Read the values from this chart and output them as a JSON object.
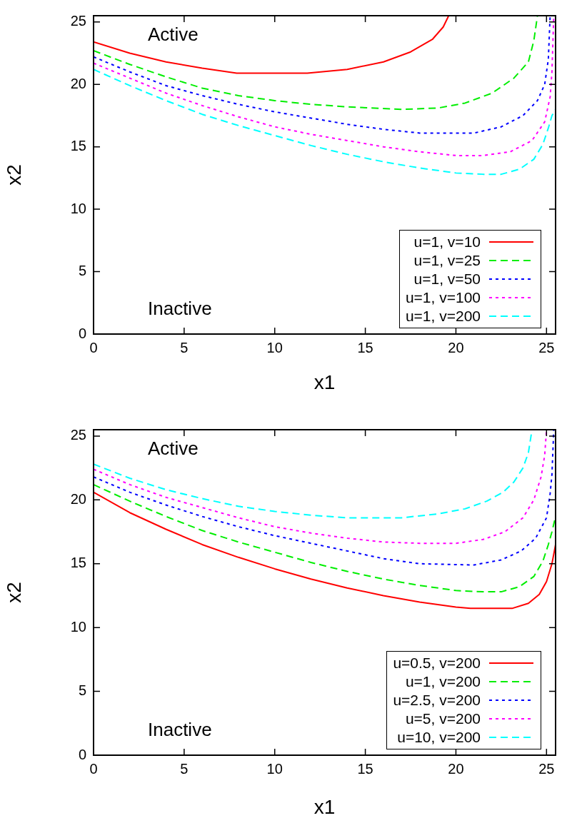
{
  "chart_data": [
    {
      "type": "line",
      "xlabel": "x1",
      "ylabel": "x2",
      "xlim": [
        0,
        25.5
      ],
      "ylim": [
        0,
        25.5
      ],
      "xticks": [
        0,
        5,
        10,
        15,
        20,
        25
      ],
      "yticks": [
        0,
        5,
        10,
        15,
        20,
        25
      ],
      "grid": false,
      "legend": "bottom right",
      "marker": "none",
      "annotations": [
        "Active",
        "Inactive"
      ],
      "series": [
        {
          "name": "u=1, v=10",
          "color": "#ff0000",
          "line_style": "solid",
          "x": [
            0,
            2,
            4,
            6,
            7.9,
            11.8,
            14,
            16,
            17.5,
            18.7,
            19.3,
            19.6
          ],
          "values": [
            23.4,
            22.5,
            21.8,
            21.3,
            20.9,
            20.9,
            21.2,
            21.8,
            22.6,
            23.6,
            24.6,
            25.5
          ]
        },
        {
          "name": "u=1, v=25",
          "color": "#00ee00",
          "line_style": "dashed",
          "x": [
            0,
            2,
            4,
            6,
            8,
            10,
            12,
            14,
            17,
            19,
            20.5,
            22,
            23.2,
            24,
            24.3,
            24.5
          ],
          "values": [
            22.7,
            21.6,
            20.6,
            19.7,
            19.1,
            18.7,
            18.4,
            18.2,
            18.0,
            18.1,
            18.5,
            19.3,
            20.5,
            21.8,
            23.5,
            25.5
          ]
        },
        {
          "name": "u=1, v=50",
          "color": "#0000ff",
          "line_style": "dotted",
          "x": [
            0,
            2,
            4,
            6,
            8,
            10,
            12,
            14,
            16,
            18,
            21,
            22.5,
            23.7,
            24.5,
            24.9,
            25.1,
            25.2
          ],
          "values": [
            22.2,
            21.0,
            19.9,
            19.1,
            18.4,
            17.8,
            17.3,
            16.8,
            16.4,
            16.1,
            16.1,
            16.6,
            17.5,
            18.7,
            20.0,
            22.0,
            25.5
          ]
        },
        {
          "name": "u=1, v=100",
          "color": "#ff00ff",
          "line_style": "dotted",
          "x": [
            0,
            2,
            4,
            6,
            8,
            10,
            12,
            14,
            16,
            18,
            20,
            21.5,
            23,
            24.2,
            24.9,
            25.2,
            25.3,
            25.4
          ],
          "values": [
            21.7,
            20.5,
            19.3,
            18.3,
            17.4,
            16.6,
            16.0,
            15.5,
            15.0,
            14.6,
            14.3,
            14.3,
            14.6,
            15.5,
            17.0,
            19.0,
            21.0,
            25.5
          ]
        },
        {
          "name": "u=1, v=200",
          "color": "#00ffff",
          "line_style": "dashed",
          "x": [
            0,
            2,
            4,
            6,
            8,
            10,
            12,
            14,
            16,
            18,
            20,
            21.5,
            22.5,
            23.5,
            24.3,
            24.8,
            25.1,
            25.3,
            25.5
          ],
          "values": [
            21.2,
            19.9,
            18.7,
            17.6,
            16.7,
            15.9,
            15.1,
            14.4,
            13.8,
            13.3,
            12.9,
            12.8,
            12.8,
            13.2,
            14.0,
            15.2,
            16.5,
            17.5,
            18.0
          ]
        }
      ]
    },
    {
      "type": "line",
      "xlabel": "x1",
      "ylabel": "x2",
      "xlim": [
        0,
        25.5
      ],
      "ylim": [
        0,
        25.5
      ],
      "xticks": [
        0,
        5,
        10,
        15,
        20,
        25
      ],
      "yticks": [
        0,
        5,
        10,
        15,
        20,
        25
      ],
      "grid": false,
      "legend": "bottom right",
      "marker": "none",
      "annotations": [
        "Active",
        "Inactive"
      ],
      "series": [
        {
          "name": "u=0.5, v=200",
          "color": "#ff0000",
          "line_style": "solid",
          "x": [
            0,
            2,
            4,
            6,
            8,
            10,
            12,
            14,
            16,
            18,
            20,
            20.8,
            23.1,
            24,
            24.6,
            25.0,
            25.3,
            25.5
          ],
          "values": [
            20.6,
            19.0,
            17.7,
            16.5,
            15.5,
            14.6,
            13.8,
            13.1,
            12.5,
            12.0,
            11.6,
            11.5,
            11.5,
            11.9,
            12.6,
            13.6,
            15.0,
            16.5
          ]
        },
        {
          "name": "u=1, v=200",
          "color": "#00ee00",
          "line_style": "dashed",
          "x": [
            0,
            2,
            4,
            6,
            8,
            10,
            12,
            14,
            16,
            18,
            20,
            21.5,
            22.5,
            23.5,
            24.3,
            24.8,
            25.1,
            25.3,
            25.5
          ],
          "values": [
            21.2,
            19.9,
            18.7,
            17.6,
            16.7,
            15.9,
            15.1,
            14.4,
            13.8,
            13.3,
            12.9,
            12.8,
            12.8,
            13.2,
            14.0,
            15.2,
            16.5,
            17.5,
            18.7
          ]
        },
        {
          "name": "u=2.5, v=200",
          "color": "#0000ff",
          "line_style": "dotted",
          "x": [
            0,
            2,
            4,
            6,
            8,
            10,
            12,
            14,
            16,
            18,
            21,
            22.5,
            23.6,
            24.4,
            25.0,
            25.2,
            25.3,
            25.4
          ],
          "values": [
            21.8,
            20.6,
            19.6,
            18.7,
            17.9,
            17.2,
            16.6,
            16.0,
            15.4,
            15.0,
            14.9,
            15.3,
            16.0,
            17.0,
            18.6,
            20.5,
            22.0,
            25.5
          ]
        },
        {
          "name": "u=5, v=200",
          "color": "#ff00ff",
          "line_style": "dotted",
          "x": [
            0,
            2,
            4,
            6,
            8,
            10,
            12,
            14,
            16,
            18,
            20,
            21.5,
            22.7,
            23.7,
            24.3,
            24.7,
            24.9,
            25.0
          ],
          "values": [
            22.4,
            21.2,
            20.2,
            19.4,
            18.6,
            17.9,
            17.4,
            17.0,
            16.7,
            16.6,
            16.6,
            16.9,
            17.5,
            18.6,
            20.0,
            21.8,
            23.5,
            25.5
          ]
        },
        {
          "name": "u=10, v=200",
          "color": "#00ffff",
          "line_style": "dashed",
          "x": [
            0,
            2,
            4,
            6,
            8,
            10,
            12,
            14,
            17,
            19,
            20.5,
            21.7,
            22.6,
            23.2,
            23.7,
            24.0,
            24.2
          ],
          "values": [
            22.8,
            21.7,
            20.8,
            20.1,
            19.5,
            19.1,
            18.8,
            18.6,
            18.6,
            18.9,
            19.3,
            19.9,
            20.6,
            21.4,
            22.5,
            23.7,
            25.5
          ]
        }
      ]
    }
  ]
}
